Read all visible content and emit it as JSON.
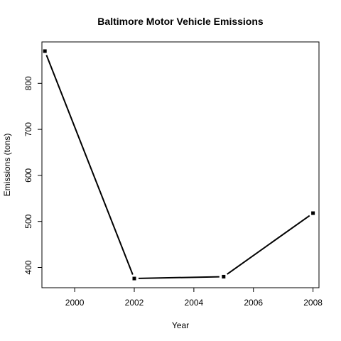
{
  "chart_data": {
    "type": "line",
    "title": "Baltimore Motor Vehicle Emissions",
    "xlabel": "Year",
    "ylabel": "Emissions (tons)",
    "x": [
      1999,
      2002,
      2005,
      2008
    ],
    "series": [
      {
        "values": [
          870,
          376,
          380,
          518
        ]
      }
    ],
    "xlim": [
      1998.9,
      2008.2
    ],
    "ylim": [
      356,
      890
    ],
    "xticks": [
      2000,
      2002,
      2004,
      2006,
      2008
    ],
    "yticks": [
      400,
      500,
      600,
      700,
      800
    ],
    "xtick_labels": [
      "2000",
      "2002",
      "2004",
      "2006",
      "2008"
    ],
    "ytick_labels": [
      "400",
      "500",
      "600",
      "700",
      "800"
    ],
    "grid": false,
    "legend": "none",
    "line_color": "#000000",
    "point_marker": "square"
  }
}
